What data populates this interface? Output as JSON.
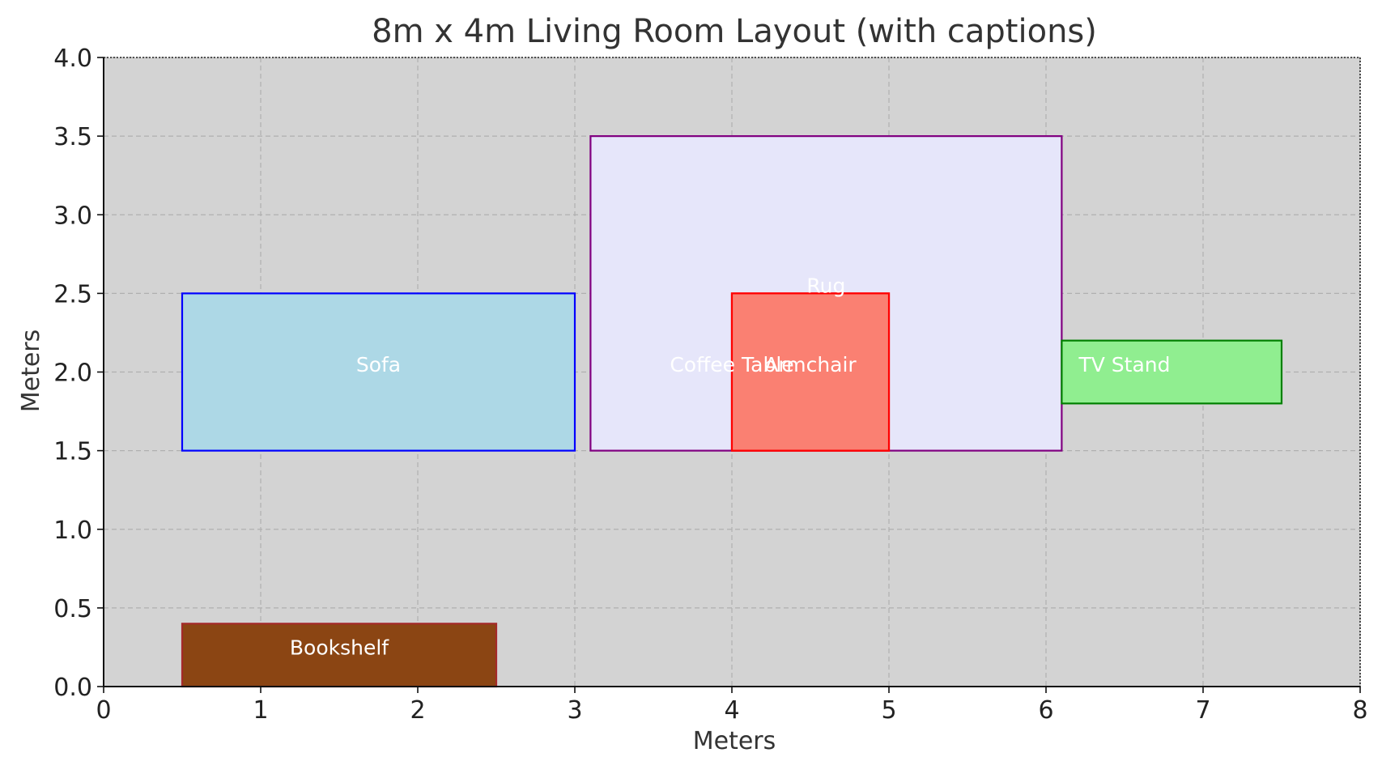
{
  "chart_data": {
    "type": "floor-plan",
    "title": "8m x 4m Living Room Layout (with captions)",
    "xlabel": "Meters",
    "ylabel": "Meters",
    "xlim": [
      0,
      8
    ],
    "ylim": [
      0,
      4
    ],
    "xticks": [
      "0",
      "1",
      "2",
      "3",
      "4",
      "5",
      "6",
      "7",
      "8"
    ],
    "yticks": [
      "0.0",
      "0.5",
      "1.0",
      "1.5",
      "2.0",
      "2.5",
      "3.0",
      "3.5",
      "4.0"
    ],
    "grid": true,
    "background": "#d3d3d3",
    "items": [
      {
        "label": "Bookshelf",
        "x": 0.5,
        "y": 0.0,
        "width": 2.0,
        "height": 0.4,
        "fill": "#8b4513",
        "stroke": "#a52a2a",
        "label_x": 1.5,
        "label_y": 0.25
      },
      {
        "label": "Sofa",
        "x": 0.5,
        "y": 1.5,
        "width": 2.5,
        "height": 1.0,
        "fill": "#add8e6",
        "stroke": "#0000ff",
        "label_x": 1.75,
        "label_y": 2.05
      },
      {
        "label": "Rug",
        "x": 3.1,
        "y": 1.5,
        "width": 3.0,
        "height": 2.0,
        "fill": "#e6e6fa",
        "stroke": "#800080",
        "label_x": 4.6,
        "label_y": 2.55
      },
      {
        "label": "Coffee Table",
        "x": 4.0,
        "y": 1.5,
        "width": 1.0,
        "height": 1.0,
        "fill": "#fa8072",
        "stroke": "#ff0000",
        "label_x": 4.0,
        "label_y": 2.05
      },
      {
        "label": "Armchair",
        "x": 4.0,
        "y": 1.5,
        "width": 1.0,
        "height": 1.0,
        "fill": "#fa8072",
        "stroke": "#ff0000",
        "label_x": 4.5,
        "label_y": 2.05
      },
      {
        "label": "TV Stand",
        "x": 6.1,
        "y": 1.8,
        "width": 1.4,
        "height": 0.4,
        "fill": "#90ee90",
        "stroke": "#008000",
        "label_x": 6.5,
        "label_y": 2.05
      }
    ]
  }
}
